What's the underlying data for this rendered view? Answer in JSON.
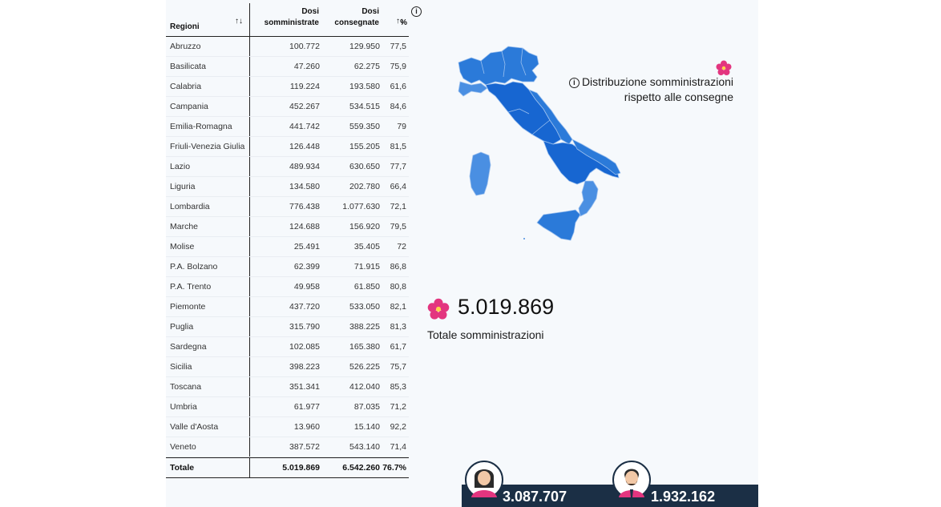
{
  "table": {
    "header": {
      "region": "Regioni",
      "sort_icon": "sort-arrows-icon",
      "administered_line1": "Dosi",
      "administered_line2": "somministrate",
      "delivered_line1": "Dosi",
      "delivered_line2": "consegnate",
      "percent": "%"
    },
    "rows": [
      {
        "region": "Abruzzo",
        "administered": "100.772",
        "delivered": "129.950",
        "percent": "77,5"
      },
      {
        "region": "Basilicata",
        "administered": "47.260",
        "delivered": "62.275",
        "percent": "75,9"
      },
      {
        "region": "Calabria",
        "administered": "119.224",
        "delivered": "193.580",
        "percent": "61,6"
      },
      {
        "region": "Campania",
        "administered": "452.267",
        "delivered": "534.515",
        "percent": "84,6"
      },
      {
        "region": "Emilia-Romagna",
        "administered": "441.742",
        "delivered": "559.350",
        "percent": "79"
      },
      {
        "region": "Friuli-Venezia Giulia",
        "administered": "126.448",
        "delivered": "155.205",
        "percent": "81,5"
      },
      {
        "region": "Lazio",
        "administered": "489.934",
        "delivered": "630.650",
        "percent": "77,7"
      },
      {
        "region": "Liguria",
        "administered": "134.580",
        "delivered": "202.780",
        "percent": "66,4"
      },
      {
        "region": "Lombardia",
        "administered": "776.438",
        "delivered": "1.077.630",
        "percent": "72,1"
      },
      {
        "region": "Marche",
        "administered": "124.688",
        "delivered": "156.920",
        "percent": "79,5"
      },
      {
        "region": "Molise",
        "administered": "25.491",
        "delivered": "35.405",
        "percent": "72"
      },
      {
        "region": "P.A. Bolzano",
        "administered": "62.399",
        "delivered": "71.915",
        "percent": "86,8"
      },
      {
        "region": "P.A. Trento",
        "administered": "49.958",
        "delivered": "61.850",
        "percent": "80,8"
      },
      {
        "region": "Piemonte",
        "administered": "437.720",
        "delivered": "533.050",
        "percent": "82,1"
      },
      {
        "region": "Puglia",
        "administered": "315.790",
        "delivered": "388.225",
        "percent": "81,3"
      },
      {
        "region": "Sardegna",
        "administered": "102.085",
        "delivered": "165.380",
        "percent": "61,7"
      },
      {
        "region": "Sicilia",
        "administered": "398.223",
        "delivered": "526.225",
        "percent": "75,7"
      },
      {
        "region": "Toscana",
        "administered": "351.341",
        "delivered": "412.040",
        "percent": "85,3"
      },
      {
        "region": "Umbria",
        "administered": "61.977",
        "delivered": "87.035",
        "percent": "71,2"
      },
      {
        "region": "Valle d'Aosta",
        "administered": "13.960",
        "delivered": "15.140",
        "percent": "92,2"
      },
      {
        "region": "Veneto",
        "administered": "387.572",
        "delivered": "543.140",
        "percent": "71,4"
      }
    ],
    "total": {
      "region": "Totale",
      "administered": "5.019.869",
      "delivered": "6.542.260",
      "percent": "76.7%"
    }
  },
  "info_icon": "info-circle-icon",
  "map": {
    "legend_line1": "Distribuzione somministrazioni",
    "legend_line2": "rispetto alle consegne",
    "legend_icon": "primrose-flower-icon",
    "colors": {
      "dark": "#1766d1",
      "mid": "#2b7ad9",
      "light": "#4a8fe2",
      "border": "#9cc0ee"
    }
  },
  "summary": {
    "total_value": "5.019.869",
    "total_label": "Totale somministrazioni",
    "icon": "primrose-flower-icon"
  },
  "gender": {
    "female_value": "3.087.707",
    "male_value": "1.932.162",
    "female_icon": "woman-avatar-icon",
    "male_icon": "man-avatar-icon",
    "bar_color": "#1b2f45"
  }
}
